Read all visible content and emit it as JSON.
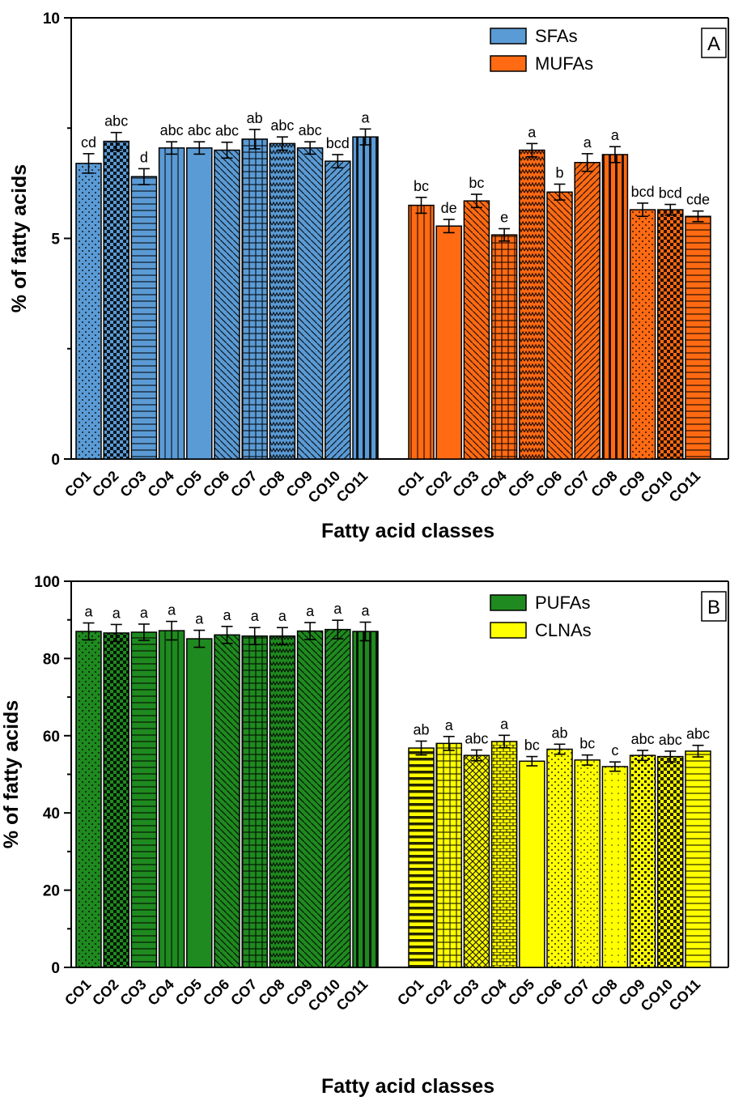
{
  "chart_data": [
    {
      "type": "bar",
      "panel_label": "A",
      "xlabel": "Fatty acid classes",
      "ylabel": "% of fatty acids",
      "ylim": [
        0,
        10
      ],
      "yticks": [
        "0",
        "5",
        "10"
      ],
      "legend_placement": "top-right",
      "grid": false,
      "series": [
        {
          "name": "SFAs",
          "color": "#5b9bd5",
          "categories": [
            "CO1",
            "CO2",
            "CO3",
            "CO4",
            "CO5",
            "CO6",
            "CO7",
            "CO8",
            "CO9",
            "CO10",
            "CO11"
          ],
          "values": [
            6.7,
            7.2,
            6.4,
            7.05,
            7.05,
            7.0,
            7.25,
            7.15,
            7.05,
            6.75,
            7.3
          ],
          "errors": [
            0.22,
            0.2,
            0.18,
            0.14,
            0.14,
            0.18,
            0.22,
            0.15,
            0.14,
            0.15,
            0.18
          ],
          "letters": [
            "cd",
            "abc",
            "d",
            "abc",
            "abc",
            "abc",
            "ab",
            "abc",
            "abc",
            "bcd",
            "a"
          ]
        },
        {
          "name": "MUFAs",
          "color": "#ff6a13",
          "categories": [
            "CO1",
            "CO2",
            "CO3",
            "CO4",
            "CO5",
            "CO6",
            "CO7",
            "CO8",
            "CO9",
            "CO10",
            "CO11"
          ],
          "values": [
            5.75,
            5.28,
            5.85,
            5.08,
            7.0,
            6.05,
            6.72,
            6.9,
            5.65,
            5.65,
            5.5
          ],
          "errors": [
            0.18,
            0.15,
            0.15,
            0.14,
            0.15,
            0.18,
            0.2,
            0.18,
            0.15,
            0.12,
            0.12
          ],
          "letters": [
            "bc",
            "de",
            "bc",
            "e",
            "a",
            "b",
            "a",
            "a",
            "bcd",
            "bcd",
            "cde"
          ]
        }
      ]
    },
    {
      "type": "bar",
      "panel_label": "B",
      "xlabel": "Fatty acid classes",
      "ylabel": "% of fatty acids",
      "ylim": [
        0,
        100
      ],
      "yticks": [
        "0",
        "20",
        "40",
        "60",
        "80",
        "100"
      ],
      "legend_placement": "top-right",
      "grid": false,
      "series": [
        {
          "name": "PUFAs",
          "color": "#1f8a1f",
          "categories": [
            "CO1",
            "CO2",
            "CO3",
            "CO4",
            "CO5",
            "CO6",
            "CO7",
            "CO8",
            "CO9",
            "CO10",
            "CO11"
          ],
          "values": [
            87,
            86.6,
            86.8,
            87.2,
            85.1,
            86.1,
            85.8,
            85.8,
            87.1,
            87.5,
            87.0
          ],
          "errors": [
            2.2,
            2.2,
            2.1,
            2.4,
            2.2,
            2.2,
            2.2,
            2.2,
            2.2,
            2.4,
            2.4
          ],
          "letters": [
            "a",
            "a",
            "a",
            "a",
            "a",
            "a",
            "a",
            "a",
            "a",
            "a",
            "a"
          ]
        },
        {
          "name": "CLNAs",
          "color": "#ffff00",
          "categories": [
            "CO1",
            "CO2",
            "CO3",
            "CO4",
            "CO5",
            "CO6",
            "CO7",
            "CO8",
            "CO9",
            "CO10",
            "CO11"
          ],
          "values": [
            56.8,
            58.0,
            54.9,
            58.5,
            53.4,
            56.5,
            53.7,
            52.0,
            54.9,
            54.6,
            56.0
          ],
          "errors": [
            1.8,
            1.8,
            1.4,
            1.6,
            1.2,
            1.3,
            1.3,
            1.2,
            1.3,
            1.4,
            1.5
          ],
          "letters": [
            "ab",
            "a",
            "abc",
            "a",
            "bc",
            "ab",
            "bc",
            "c",
            "abc",
            "abc",
            "abc"
          ]
        }
      ]
    }
  ]
}
